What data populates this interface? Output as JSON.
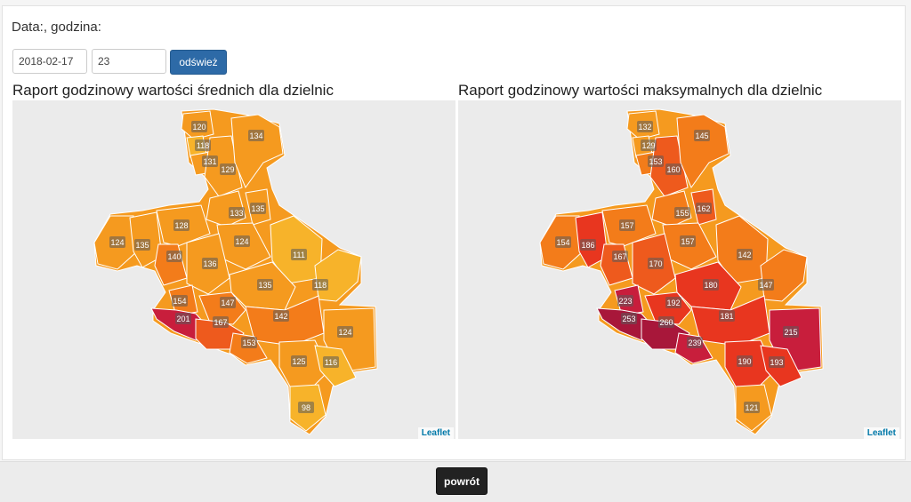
{
  "form": {
    "label": "Data:, godzina:",
    "date_value": "2018-02-17",
    "hour_value": "23",
    "refresh_label": "odśwież"
  },
  "maps": {
    "left": {
      "title": "Raport godzinowy wartości średnich dla dzielnic",
      "attribution": "Leaflet"
    },
    "right": {
      "title": "Raport godzinowy wartości maksymalnych dla dzielnic",
      "attribution": "Leaflet"
    }
  },
  "district_values": {
    "avg": [
      "120",
      "118",
      "131",
      "129",
      "134",
      "133",
      "135",
      "124",
      "135",
      "128",
      "140",
      "124",
      "136",
      "111",
      "118",
      "135",
      "154",
      "147",
      "201",
      "167",
      "142",
      "124",
      "153",
      "125",
      "116",
      "98"
    ],
    "max": [
      "132",
      "129",
      "153",
      "160",
      "145",
      "155",
      "162",
      "154",
      "186",
      "157",
      "167",
      "157",
      "170",
      "142",
      "147",
      "180",
      "223",
      "192",
      "253",
      "260",
      "181",
      "215",
      "239",
      "190",
      "193",
      "121"
    ]
  },
  "colors": {
    "scale": [
      "#f7b32a",
      "#f59a1f",
      "#f37c1a",
      "#ee5a1d",
      "#e8361f",
      "#c81e3c",
      "#a8173a"
    ],
    "button_primary": "#2d6aa7",
    "button_dark": "#222222",
    "attribution_link": "#0078a8"
  },
  "footer": {
    "back_label": "powrót"
  }
}
